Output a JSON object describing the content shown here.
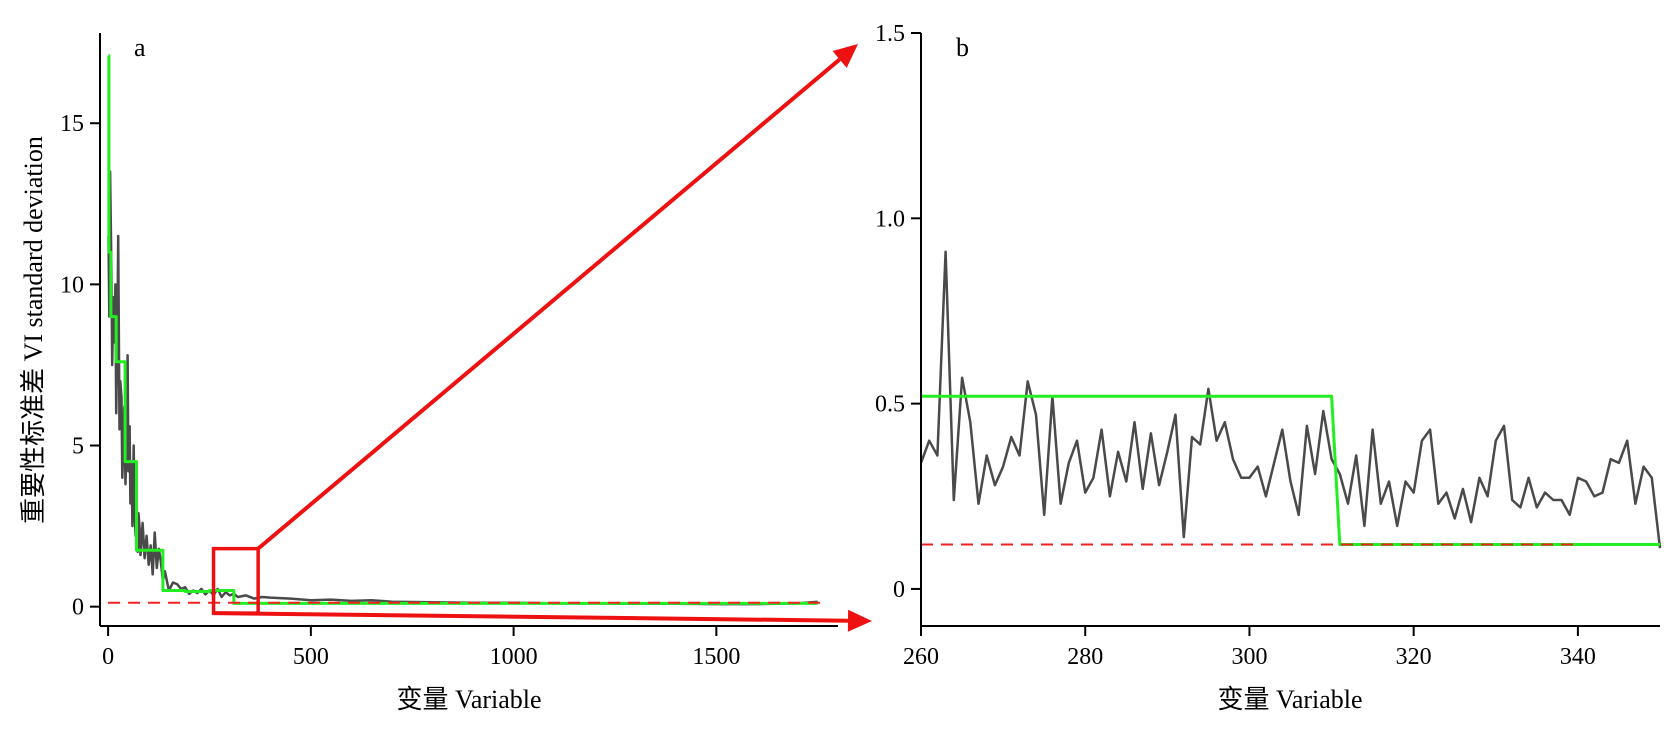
{
  "chart_data": [
    {
      "panel_label": "a",
      "type": "line",
      "ylabel": "重要性标准差 VI standard deviation",
      "xlabel": "变量 Variable",
      "xlim": [
        -20,
        1800
      ],
      "ylim": [
        -0.6,
        17.8
      ],
      "xticks": [
        0,
        500,
        1000,
        1500
      ],
      "yticks": [
        0,
        5,
        10,
        15
      ],
      "xtick_labels": [
        "0",
        "500",
        "1000",
        "1500"
      ],
      "ytick_labels": [
        "0",
        "5",
        "10",
        "15"
      ],
      "series": [
        {
          "color": "#4a4a4a",
          "x": [
            1,
            3,
            5,
            8,
            10,
            13,
            15,
            18,
            20,
            23,
            25,
            28,
            30,
            33,
            35,
            38,
            40,
            43,
            45,
            48,
            50,
            53,
            55,
            58,
            60,
            63,
            65,
            68,
            70,
            73,
            75,
            78,
            80,
            85,
            90,
            95,
            100,
            105,
            110,
            115,
            120,
            125,
            130,
            135,
            140,
            150,
            160,
            170,
            180,
            190,
            200,
            210,
            220,
            230,
            240,
            250,
            260,
            270,
            280,
            290,
            300,
            310,
            320,
            340,
            360,
            380,
            400,
            450,
            500,
            550,
            600,
            650,
            700,
            800,
            900,
            1000,
            1100,
            1200,
            1300,
            1400,
            1500,
            1600,
            1700,
            1750
          ],
          "values": [
            11.5,
            9.0,
            13.5,
            10.5,
            7.5,
            9.6,
            8.2,
            10.0,
            6.0,
            8.5,
            11.5,
            5.5,
            7.0,
            6.5,
            4.0,
            5.2,
            6.2,
            3.8,
            4.9,
            7.8,
            4.2,
            5.6,
            3.2,
            4.5,
            2.5,
            5.0,
            3.0,
            2.2,
            3.5,
            1.7,
            2.9,
            2.4,
            1.6,
            2.6,
            1.5,
            2.2,
            1.3,
            1.9,
            1.0,
            2.3,
            1.2,
            1.8,
            1.4,
            0.8,
            1.1,
            0.5,
            0.75,
            0.7,
            0.55,
            0.6,
            0.4,
            0.5,
            0.42,
            0.55,
            0.38,
            0.5,
            0.36,
            0.55,
            0.3,
            0.45,
            0.35,
            0.4,
            0.3,
            0.35,
            0.25,
            0.3,
            0.28,
            0.25,
            0.2,
            0.22,
            0.18,
            0.2,
            0.15,
            0.14,
            0.12,
            0.12,
            0.1,
            0.1,
            0.09,
            0.09,
            0.08,
            0.08,
            0.1,
            0.15
          ]
        },
        {
          "color": "#22ee22",
          "x": [
            1,
            2,
            2,
            7,
            7,
            20,
            20,
            42,
            42,
            70,
            70,
            135,
            135,
            190,
            190,
            250,
            250,
            310,
            310,
            1750
          ],
          "values": [
            17.1,
            17.1,
            11.0,
            11.0,
            9.0,
            9.0,
            7.6,
            7.6,
            4.5,
            4.5,
            1.75,
            1.75,
            0.5,
            0.5,
            0.47,
            0.47,
            0.5,
            0.5,
            0.1,
            0.1
          ]
        },
        {
          "color": "#ee2222",
          "style": "dashed",
          "x": [
            0,
            1760
          ],
          "values": [
            0.12,
            0.12
          ]
        }
      ],
      "zoom_box": {
        "x": [
          260,
          370
        ],
        "y": [
          -0.2,
          1.8
        ]
      }
    },
    {
      "panel_label": "b",
      "type": "line",
      "xlabel": "变量 Variable",
      "xlim": [
        260,
        350
      ],
      "ylim": [
        -0.1,
        1.5
      ],
      "xticks": [
        260,
        280,
        300,
        320,
        340
      ],
      "yticks": [
        0,
        0.5,
        1.0,
        1.5
      ],
      "xtick_labels": [
        "260",
        "280",
        "300",
        "320",
        "340"
      ],
      "ytick_labels": [
        "0",
        "0.5",
        "1.0",
        "1.5"
      ],
      "series": [
        {
          "color": "#4a4a4a",
          "x": [
            260,
            261,
            262,
            263,
            264,
            265,
            266,
            267,
            268,
            269,
            270,
            271,
            272,
            273,
            274,
            275,
            276,
            277,
            278,
            279,
            280,
            281,
            282,
            283,
            284,
            285,
            286,
            287,
            288,
            289,
            290,
            291,
            292,
            293,
            294,
            295,
            296,
            297,
            298,
            299,
            300,
            301,
            302,
            303,
            304,
            305,
            306,
            307,
            308,
            309,
            310,
            311,
            312,
            313,
            314,
            315,
            316,
            317,
            318,
            319,
            320,
            321,
            322,
            323,
            324,
            325,
            326,
            327,
            328,
            329,
            330,
            331,
            332,
            333,
            334,
            335,
            336,
            337,
            338,
            339,
            340,
            341,
            342,
            343,
            344,
            345,
            346,
            347,
            348,
            349,
            350
          ],
          "values": [
            0.34,
            0.4,
            0.36,
            0.91,
            0.24,
            0.57,
            0.45,
            0.23,
            0.36,
            0.28,
            0.33,
            0.41,
            0.36,
            0.56,
            0.47,
            0.2,
            0.52,
            0.23,
            0.34,
            0.4,
            0.26,
            0.3,
            0.43,
            0.25,
            0.37,
            0.29,
            0.45,
            0.27,
            0.42,
            0.28,
            0.37,
            0.47,
            0.14,
            0.41,
            0.39,
            0.54,
            0.4,
            0.45,
            0.35,
            0.3,
            0.3,
            0.33,
            0.25,
            0.34,
            0.43,
            0.29,
            0.2,
            0.44,
            0.31,
            0.48,
            0.35,
            0.31,
            0.23,
            0.36,
            0.17,
            0.43,
            0.23,
            0.29,
            0.17,
            0.29,
            0.26,
            0.4,
            0.43,
            0.23,
            0.26,
            0.19,
            0.27,
            0.18,
            0.3,
            0.25,
            0.4,
            0.44,
            0.24,
            0.22,
            0.3,
            0.22,
            0.26,
            0.24,
            0.24,
            0.2,
            0.3,
            0.29,
            0.25,
            0.26,
            0.35,
            0.34,
            0.4,
            0.23,
            0.33,
            0.3,
            0.11
          ]
        },
        {
          "color": "#22ee22",
          "x": [
            260,
            310,
            311,
            350
          ],
          "values": [
            0.52,
            0.52,
            0.12,
            0.12
          ]
        },
        {
          "color": "#ee2222",
          "style": "dashed",
          "x": [
            260,
            340
          ],
          "values": [
            0.12,
            0.12
          ]
        }
      ]
    }
  ],
  "colors": {
    "axis": "#000000",
    "line": "#4a4a4a",
    "step": "#22ee22",
    "threshold": "#ee2222",
    "arrow": "#ee1111"
  }
}
